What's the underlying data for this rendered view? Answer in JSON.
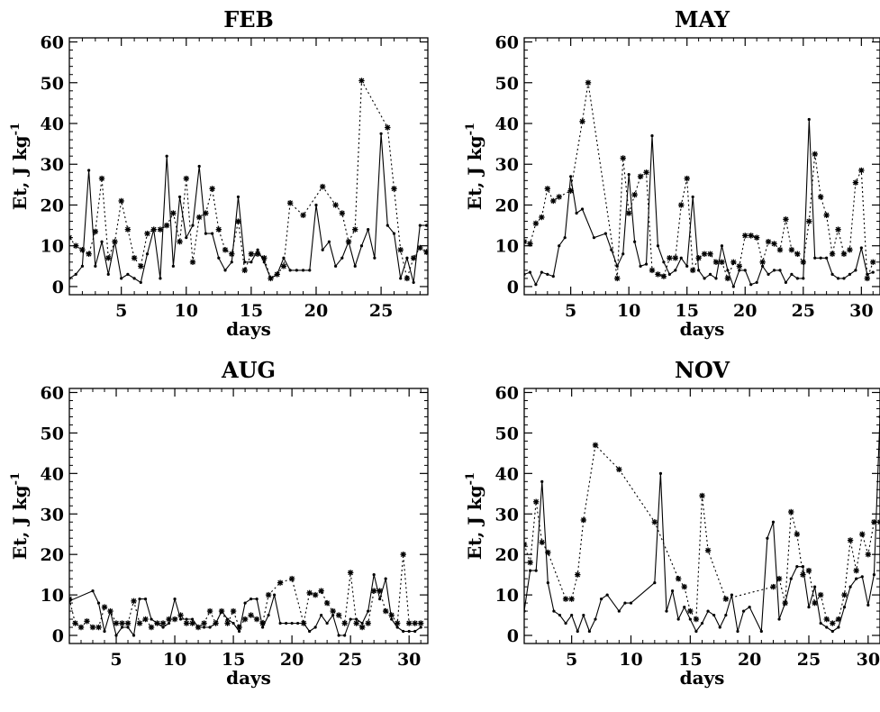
{
  "chart_data": [
    {
      "type": "line",
      "title": "FEB",
      "xlabel": "days",
      "ylabel": "Et,   J kg",
      "ylabel_superscript": "-1",
      "xlim": [
        1,
        28.6
      ],
      "ylim": [
        -2,
        61
      ],
      "xticks": [
        5,
        10,
        15,
        20,
        25
      ],
      "yticks": [
        0,
        10,
        20,
        30,
        40,
        50,
        60
      ],
      "series": [
        {
          "style": "solid",
          "x": [
            1,
            1.5,
            2,
            2.5,
            3,
            3.5,
            4,
            4.5,
            5,
            5.5,
            6,
            6.5,
            7,
            7.5,
            8,
            8.5,
            9,
            9.5,
            10,
            10.5,
            11,
            11.5,
            12,
            12.5,
            13,
            13.5,
            14,
            14.5,
            15,
            15.5,
            16,
            16.5,
            17,
            17.5,
            18,
            18.5,
            19,
            19.5,
            20,
            20.5,
            21,
            21.5,
            22,
            22.5,
            23,
            23.5,
            24,
            24.5,
            25,
            25.5,
            26,
            26.5,
            27,
            27.5,
            28,
            28.5
          ],
          "y": [
            2,
            3,
            5,
            28.5,
            5,
            11,
            3,
            11,
            2,
            3,
            2,
            1,
            8,
            14,
            2,
            32,
            5,
            22,
            12,
            15,
            29.5,
            13,
            13,
            7,
            4,
            6,
            22,
            6,
            6,
            9,
            6,
            2,
            3,
            7,
            4,
            4,
            4,
            4,
            20,
            9,
            11,
            5,
            7,
            11,
            5,
            10,
            14,
            7,
            37.5,
            15,
            13,
            2,
            7,
            1,
            15,
            15
          ],
          "marker": "dot"
        },
        {
          "style": "dotted",
          "x": [
            1,
            1.5,
            2,
            2.5,
            3,
            3.5,
            4,
            4.5,
            5,
            5.5,
            6,
            6.5,
            7,
            7.5,
            8,
            8.5,
            9,
            9.5,
            10,
            10.5,
            11,
            11.5,
            12,
            12.5,
            13,
            13.5,
            14,
            14.5,
            15,
            15.5,
            16,
            16.5,
            17,
            17.5,
            18,
            19,
            20.5,
            21.5,
            22,
            22.5,
            23,
            23.5,
            25.5,
            26,
            26.5,
            27,
            27.5,
            28,
            28.5
          ],
          "y": [
            12,
            10,
            9,
            8,
            13.5,
            26.5,
            7,
            11,
            21,
            14,
            7,
            5,
            13,
            14,
            14,
            15,
            18,
            11,
            26.5,
            6,
            17,
            18,
            24,
            14,
            9,
            8,
            16,
            4,
            8,
            8,
            7,
            2,
            3,
            5,
            20.5,
            17.5,
            24.5,
            20,
            18,
            11,
            14,
            50.5,
            39,
            24,
            9,
            2,
            7,
            9.5,
            8.5
          ],
          "marker": "star"
        }
      ]
    },
    {
      "type": "line",
      "title": "MAY",
      "xlabel": "days",
      "ylabel": "Et,   J kg",
      "ylabel_superscript": "-1",
      "xlim": [
        1,
        31.6
      ],
      "ylim": [
        -2,
        61
      ],
      "xticks": [
        5,
        10,
        15,
        20,
        25,
        30
      ],
      "yticks": [
        0,
        10,
        20,
        30,
        40,
        50,
        60
      ],
      "series": [
        {
          "style": "solid",
          "x": [
            1,
            1.5,
            2,
            2.5,
            3,
            3.5,
            4,
            4.5,
            5,
            5.5,
            6,
            7,
            8,
            8.5,
            9,
            9.5,
            10,
            10.5,
            11,
            11.5,
            12,
            12.5,
            13,
            13.5,
            14,
            14.5,
            15,
            15.5,
            16,
            16.5,
            17,
            17.5,
            18,
            18.5,
            19,
            19.5,
            20,
            20.5,
            21,
            21.5,
            22,
            22.5,
            23,
            23.5,
            24,
            24.5,
            25,
            25.5,
            26,
            26.5,
            27,
            27.5,
            28,
            28.5,
            29,
            29.5,
            30,
            30.5,
            31
          ],
          "y": [
            3,
            3.5,
            0.5,
            3.5,
            3,
            2.5,
            10,
            12,
            27,
            18,
            19,
            12,
            13,
            9,
            5,
            8,
            27.5,
            11,
            5,
            5.5,
            37,
            10,
            6,
            3,
            4,
            7,
            5,
            22,
            4,
            2,
            3,
            2,
            10,
            4,
            0,
            4,
            4,
            0.5,
            1,
            5,
            3,
            4,
            4,
            1,
            3,
            2,
            2,
            41,
            7,
            7,
            7,
            3,
            2,
            2,
            3,
            4,
            9.5,
            3,
            3.5
          ],
          "marker": "dot"
        },
        {
          "style": "dotted",
          "x": [
            1,
            1.5,
            2,
            2.5,
            3,
            3.5,
            4,
            5,
            6,
            6.5,
            9,
            9.5,
            10,
            10.5,
            11,
            11.5,
            12,
            12.5,
            13,
            13.5,
            14,
            14.5,
            15,
            15.5,
            16,
            16.5,
            17,
            17.5,
            18,
            18.5,
            19,
            19.5,
            20,
            20.5,
            21,
            21.5,
            22,
            22.5,
            23,
            23.5,
            24,
            24.5,
            25,
            25.5,
            26,
            26.5,
            27,
            27.5,
            28,
            28.5,
            29,
            29.5,
            30,
            30.5,
            31
          ],
          "y": [
            11,
            10.5,
            15.5,
            17,
            24,
            21,
            22,
            23.5,
            40.5,
            50,
            2,
            31.5,
            18,
            22.5,
            27,
            28,
            4,
            3,
            2.5,
            7,
            7,
            20,
            26.5,
            4,
            7,
            8,
            8,
            6,
            6,
            2,
            6,
            5,
            12.5,
            12.5,
            12,
            6,
            11,
            10.5,
            9,
            16.5,
            9,
            8,
            6,
            16,
            32.5,
            22,
            17.5,
            8,
            14,
            8,
            9,
            25.5,
            28.5,
            2,
            6
          ]
        }
      ]
    },
    {
      "type": "line",
      "title": "AUG",
      "xlabel": "days",
      "ylabel": "Et,   J kg",
      "ylabel_superscript": "-1",
      "xlim": [
        1,
        31.6
      ],
      "ylim": [
        -2,
        61
      ],
      "xticks": [
        5,
        10,
        15,
        20,
        25,
        30
      ],
      "yticks": [
        0,
        10,
        20,
        30,
        40,
        50,
        60
      ],
      "series": [
        {
          "style": "solid",
          "x": [
            1,
            3,
            3.5,
            4,
            4.5,
            5,
            5.5,
            6,
            6.5,
            7,
            7.5,
            8,
            8.5,
            9,
            9.5,
            10,
            10.5,
            11,
            11.5,
            12,
            12.5,
            13,
            13.5,
            14,
            14.5,
            15,
            15.5,
            16,
            16.5,
            17,
            17.5,
            18,
            18.5,
            19,
            19.5,
            20,
            20.5,
            21,
            21.5,
            22,
            22.5,
            23,
            23.5,
            24,
            24.5,
            25,
            25.5,
            26,
            26.5,
            27,
            27.5,
            28,
            28.5,
            29,
            29.5,
            30,
            30.5,
            31
          ],
          "y": [
            8.5,
            11,
            8,
            1,
            6,
            0,
            2,
            2,
            0,
            9,
            9,
            4,
            3,
            2,
            3,
            9,
            4,
            4,
            4,
            2,
            2,
            2,
            3,
            6,
            4,
            3,
            1,
            8,
            9,
            9,
            2,
            5,
            10,
            3,
            3,
            3,
            3,
            3,
            1,
            2,
            5,
            3,
            5,
            0,
            0,
            4,
            4,
            3,
            6,
            15,
            9,
            14,
            4,
            2,
            1,
            1,
            1,
            2
          ],
          "marker": "dot"
        },
        {
          "style": "dotted",
          "x": [
            1,
            1.5,
            2,
            2.5,
            3,
            3.5,
            4,
            4.5,
            5,
            5.5,
            6,
            6.5,
            7,
            7.5,
            8,
            8.5,
            9,
            9.5,
            10,
            10.5,
            11,
            11.5,
            12,
            12.5,
            13,
            13.5,
            14,
            14.5,
            15,
            15.5,
            16,
            16.5,
            17,
            17.5,
            18,
            19,
            20,
            21,
            21.5,
            22,
            22.5,
            23,
            23.5,
            24,
            24.5,
            25,
            25.5,
            26,
            26.5,
            27,
            27.5,
            28,
            28.5,
            29,
            29.5,
            30,
            30.5,
            31
          ],
          "y": [
            9,
            3,
            2,
            3.5,
            2,
            2,
            7,
            6,
            3,
            3,
            3,
            8.5,
            3,
            4,
            2,
            3,
            3,
            4,
            4,
            5,
            3,
            3,
            2,
            3,
            6,
            3,
            6,
            3,
            6,
            2,
            4,
            5,
            4,
            3,
            10,
            13,
            14,
            3,
            10.5,
            10,
            11,
            8,
            6,
            5,
            3,
            15.5,
            3,
            2,
            3,
            11,
            11,
            6,
            5,
            3,
            20,
            3,
            3,
            3
          ]
        }
      ]
    },
    {
      "type": "line",
      "title": "NOV",
      "xlabel": "days",
      "ylabel": "Et,   J kg",
      "ylabel_superscript": "-1",
      "xlim": [
        1,
        31
      ],
      "ylim": [
        -2,
        61
      ],
      "xticks": [
        5,
        10,
        15,
        20,
        25,
        30
      ],
      "yticks": [
        0,
        10,
        20,
        30,
        40,
        50,
        60
      ],
      "series": [
        {
          "style": "solid",
          "x": [
            1,
            1.5,
            2,
            2.5,
            3,
            3.5,
            4,
            4.5,
            5,
            5.5,
            6,
            6.5,
            7,
            7.5,
            8,
            9,
            9.5,
            10,
            12,
            12.5,
            13,
            13.5,
            14,
            14.5,
            15,
            15.5,
            16,
            16.5,
            17,
            17.5,
            18,
            18.5,
            19,
            19.5,
            20,
            21,
            21.5,
            22,
            22.5,
            23,
            23.5,
            24,
            24.5,
            25,
            25.5,
            26,
            26.5,
            27,
            27.5,
            28,
            28.5,
            29,
            29.5,
            30,
            30.5,
            31
          ],
          "y": [
            6,
            16,
            16,
            38,
            13,
            6,
            5,
            3,
            5,
            1,
            5,
            1,
            4,
            9,
            10,
            6,
            8,
            8,
            13,
            40,
            6,
            11,
            4,
            7,
            4,
            1,
            3,
            6,
            5,
            2,
            5,
            10,
            1,
            6,
            7,
            1,
            24,
            28,
            4,
            8,
            14,
            17,
            17,
            7,
            12,
            3,
            2,
            1,
            2,
            7,
            12,
            14,
            14.5,
            7.5,
            15,
            54
          ],
          "marker": "dot"
        },
        {
          "style": "dotted",
          "x": [
            1,
            1.5,
            2,
            2.5,
            3,
            4.5,
            5,
            5.5,
            6,
            7,
            9,
            12,
            14,
            14.5,
            15,
            15.5,
            16,
            16.5,
            18,
            22,
            22.5,
            23,
            23.5,
            24,
            24.5,
            25,
            25.5,
            26,
            26.5,
            27,
            27.5,
            28,
            28.5,
            29,
            29.5,
            30,
            30.5,
            31
          ],
          "y": [
            22.5,
            18,
            33,
            23,
            20.5,
            9,
            9,
            15,
            28.5,
            47,
            41,
            28,
            14,
            12,
            6,
            4,
            34.5,
            21,
            9,
            12,
            14,
            8,
            30.5,
            25,
            15,
            16,
            8,
            10,
            4,
            3,
            4,
            10,
            23.5,
            16,
            25,
            20,
            28,
            28
          ]
        }
      ]
    }
  ]
}
